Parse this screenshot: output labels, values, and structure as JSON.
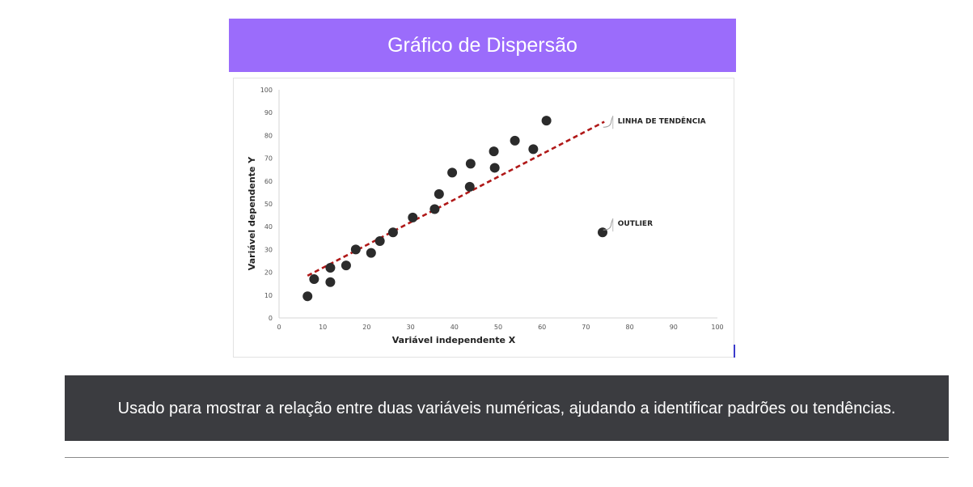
{
  "header": {
    "title": "Gráfico de Dispersão"
  },
  "caption": {
    "text": "Usado para mostrar a relação entre duas variáveis numéricas, ajudando a identificar padrões ou tendências."
  },
  "colors": {
    "banner": "#9b6cfb",
    "caption_bg": "#3b3c40",
    "trend": "#b01818",
    "points": "#2b2b2b"
  },
  "chart_data": {
    "type": "scatter",
    "title": "",
    "xlabel": "Variável independente X",
    "ylabel": "Variável dependente Y",
    "xlim": [
      0,
      100
    ],
    "ylim": [
      0,
      100
    ],
    "xticks": [
      0,
      10,
      20,
      30,
      40,
      50,
      60,
      70,
      80,
      90,
      100
    ],
    "yticks": [
      0,
      10,
      20,
      30,
      40,
      50,
      60,
      70,
      80,
      90,
      100
    ],
    "grid": false,
    "points": [
      {
        "x": 6.5,
        "y": 9.5
      },
      {
        "x": 8,
        "y": 17
      },
      {
        "x": 11.7,
        "y": 15.7
      },
      {
        "x": 11.7,
        "y": 22
      },
      {
        "x": 15.3,
        "y": 23
      },
      {
        "x": 17.5,
        "y": 30
      },
      {
        "x": 21,
        "y": 28.5
      },
      {
        "x": 23,
        "y": 33.7
      },
      {
        "x": 26,
        "y": 37.5
      },
      {
        "x": 30.5,
        "y": 44
      },
      {
        "x": 35.5,
        "y": 47.7
      },
      {
        "x": 36.5,
        "y": 54.3
      },
      {
        "x": 39.5,
        "y": 63.7
      },
      {
        "x": 43.5,
        "y": 57.5
      },
      {
        "x": 43.7,
        "y": 67.6
      },
      {
        "x": 49,
        "y": 73
      },
      {
        "x": 49.2,
        "y": 65.8
      },
      {
        "x": 53.8,
        "y": 77.7
      },
      {
        "x": 58,
        "y": 74
      },
      {
        "x": 61,
        "y": 86.5
      },
      {
        "x": 73.8,
        "y": 37.5
      }
    ],
    "trendline": {
      "x": [
        6.5,
        74.2
      ],
      "y": [
        18.5,
        86
      ]
    },
    "annotations": [
      {
        "text": "LINHA DE TENDÊNCIA",
        "x": 78,
        "y": 85
      },
      {
        "text": "OUTLIER",
        "x": 78,
        "y": 40
      }
    ]
  }
}
